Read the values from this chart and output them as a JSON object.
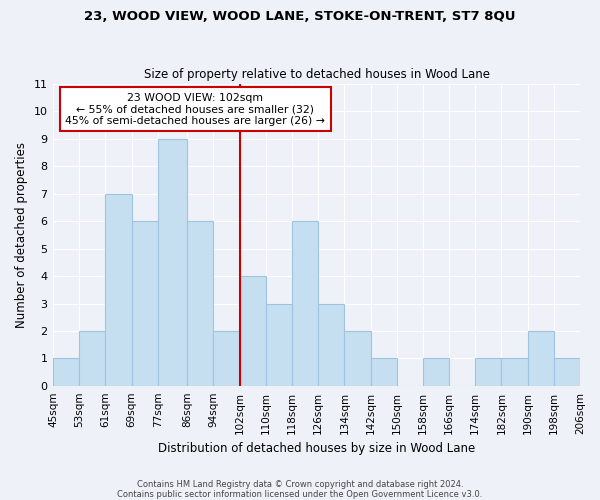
{
  "title1": "23, WOOD VIEW, WOOD LANE, STOKE-ON-TRENT, ST7 8QU",
  "title2": "Size of property relative to detached houses in Wood Lane",
  "xlabel": "Distribution of detached houses by size in Wood Lane",
  "ylabel": "Number of detached properties",
  "bin_edges": [
    45,
    53,
    61,
    69,
    77,
    86,
    94,
    102,
    110,
    118,
    126,
    134,
    142,
    150,
    158,
    166,
    174,
    182,
    190,
    198,
    206
  ],
  "bar_heights": [
    1,
    2,
    7,
    6,
    9,
    6,
    2,
    4,
    3,
    6,
    3,
    2,
    1,
    0,
    1,
    0,
    1,
    1,
    2,
    1
  ],
  "bar_color": "#c6dff0",
  "bar_edgecolor": "#a0c4e0",
  "reference_line_x": 102,
  "reference_line_color": "#cc0000",
  "ylim": [
    0,
    11
  ],
  "annotation_line1": "23 WOOD VIEW: 102sqm",
  "annotation_line2": "← 55% of detached houses are smaller (32)",
  "annotation_line3": "45% of semi-detached houses are larger (26) →",
  "annotation_box_edgecolor": "#cc0000",
  "annotation_box_facecolor": "#ffffff",
  "footer1": "Contains HM Land Registry data © Crown copyright and database right 2024.",
  "footer2": "Contains public sector information licensed under the Open Government Licence v3.0.",
  "tick_labels": [
    "45sqm",
    "53sqm",
    "61sqm",
    "69sqm",
    "77sqm",
    "86sqm",
    "94sqm",
    "102sqm",
    "110sqm",
    "118sqm",
    "126sqm",
    "134sqm",
    "142sqm",
    "150sqm",
    "158sqm",
    "166sqm",
    "174sqm",
    "182sqm",
    "190sqm",
    "198sqm",
    "206sqm"
  ],
  "background_color": "#eef2f8",
  "grid_color": "#ffffff",
  "yticks": [
    0,
    1,
    2,
    3,
    4,
    5,
    6,
    7,
    8,
    9,
    10,
    11
  ]
}
